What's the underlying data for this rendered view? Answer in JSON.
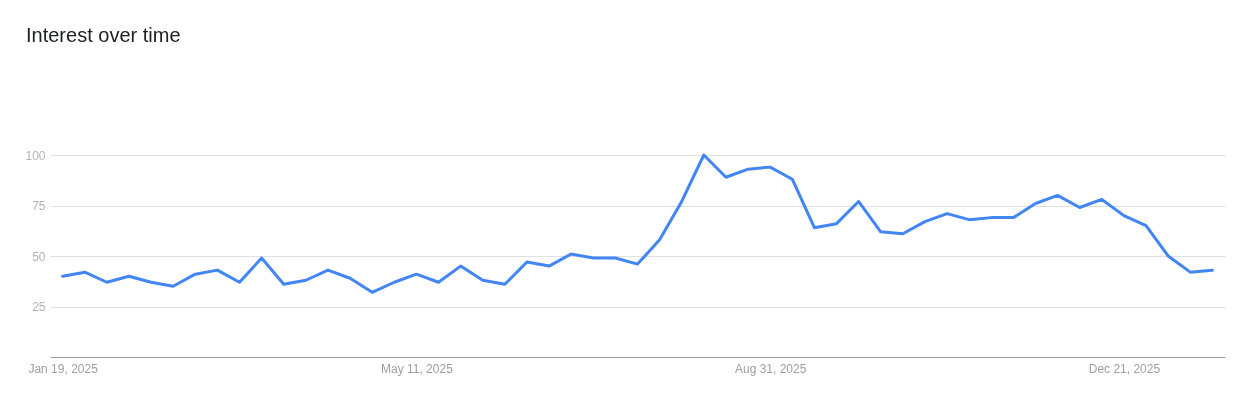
{
  "chart_data": {
    "type": "line",
    "title": "Interest over time",
    "x": [
      "2025-01-19",
      "2025-01-26",
      "2025-02-02",
      "2025-02-09",
      "2025-02-16",
      "2025-02-23",
      "2025-03-02",
      "2025-03-09",
      "2025-03-16",
      "2025-03-23",
      "2025-03-30",
      "2025-04-06",
      "2025-04-13",
      "2025-04-20",
      "2025-04-27",
      "2025-05-04",
      "2025-05-11",
      "2025-05-18",
      "2025-05-25",
      "2025-06-01",
      "2025-06-08",
      "2025-06-15",
      "2025-06-22",
      "2025-06-29",
      "2025-07-06",
      "2025-07-13",
      "2025-07-20",
      "2025-07-27",
      "2025-08-03",
      "2025-08-10",
      "2025-08-17",
      "2025-08-24",
      "2025-08-31",
      "2025-09-07",
      "2025-09-14",
      "2025-09-21",
      "2025-09-28",
      "2025-10-05",
      "2025-10-12",
      "2025-10-19",
      "2025-10-26",
      "2025-11-02",
      "2025-11-09",
      "2025-11-16",
      "2025-11-23",
      "2025-11-30",
      "2025-12-07",
      "2025-12-14",
      "2025-12-21",
      "2025-12-28",
      "2026-01-04",
      "2026-01-11",
      "2026-01-18"
    ],
    "series": [
      {
        "color": "#4285f4",
        "values": [
          40,
          42,
          37,
          40,
          37,
          35,
          41,
          43,
          37,
          49,
          36,
          38,
          43,
          39,
          32,
          37,
          41,
          37,
          45,
          38,
          36,
          47,
          45,
          51,
          49,
          49,
          46,
          58,
          77,
          100,
          89,
          93,
          94,
          88,
          64,
          66,
          77,
          62,
          61,
          67,
          71,
          68,
          69,
          69,
          76,
          80,
          74,
          78,
          70,
          65,
          50,
          42,
          43
        ]
      }
    ],
    "xlim": [
      "2025-01-15",
      "2026-01-22"
    ],
    "xticks": [
      {
        "value": "2025-01-19",
        "label": "Jan 19, 2025"
      },
      {
        "value": "2025-05-11",
        "label": "May 11, 2025"
      },
      {
        "value": "2025-08-31",
        "label": "Aug 31, 2025"
      },
      {
        "value": "2025-12-21",
        "label": "Dec 21, 2025"
      }
    ],
    "ylim": [
      0,
      100
    ],
    "yticks": [
      25,
      50,
      75,
      100
    ],
    "grid": "y",
    "marker": "none",
    "line_style": "solid"
  }
}
